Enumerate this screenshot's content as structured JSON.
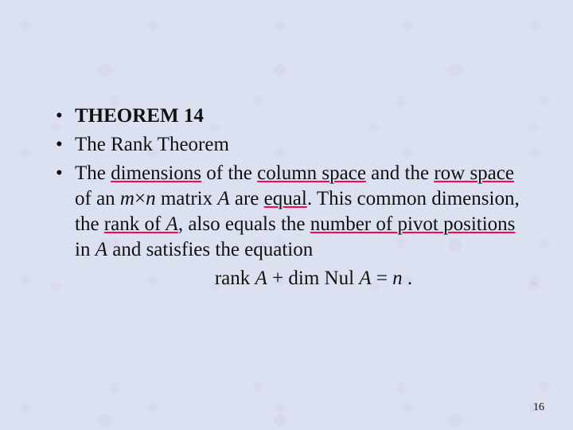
{
  "slide": {
    "background_color": "#dbe1f0",
    "text_color": "#111111",
    "underline_color": "#ff005a",
    "font_family": "Times New Roman",
    "body_fontsize_pt": 25,
    "page_number_fontsize_pt": 14,
    "bullets": {
      "b1": {
        "text": "THEOREM 14",
        "bold": true
      },
      "b2": {
        "text": "The Rank Theorem"
      },
      "b3": {
        "parts": {
          "p0": "The ",
          "p1": "dimensions",
          "p2": " of the ",
          "p3": "column space",
          "p4": " and the ",
          "p5": "row space",
          "p6": " of an ",
          "p7": "m",
          "p8": "×",
          "p9": "n",
          "p10": " matrix ",
          "p11": "A",
          "p12": " are ",
          "p13": "equal",
          "p14": ". This common dimension, the ",
          "p15": "rank",
          "p16": " of ",
          "p17": "A",
          "p18": ", also equals the ",
          "p19": "number of pivot positions",
          "p20": " in ",
          "p21": "A",
          "p22": " and satisfies the equation"
        }
      }
    },
    "equation": {
      "e0": "rank ",
      "e1": "A",
      "e2": " + dim ",
      "e3": "Nul",
      "e4": " ",
      "e5": "A",
      "e6": " = ",
      "e7": "n",
      "e8": " ."
    },
    "page_number": "16"
  }
}
